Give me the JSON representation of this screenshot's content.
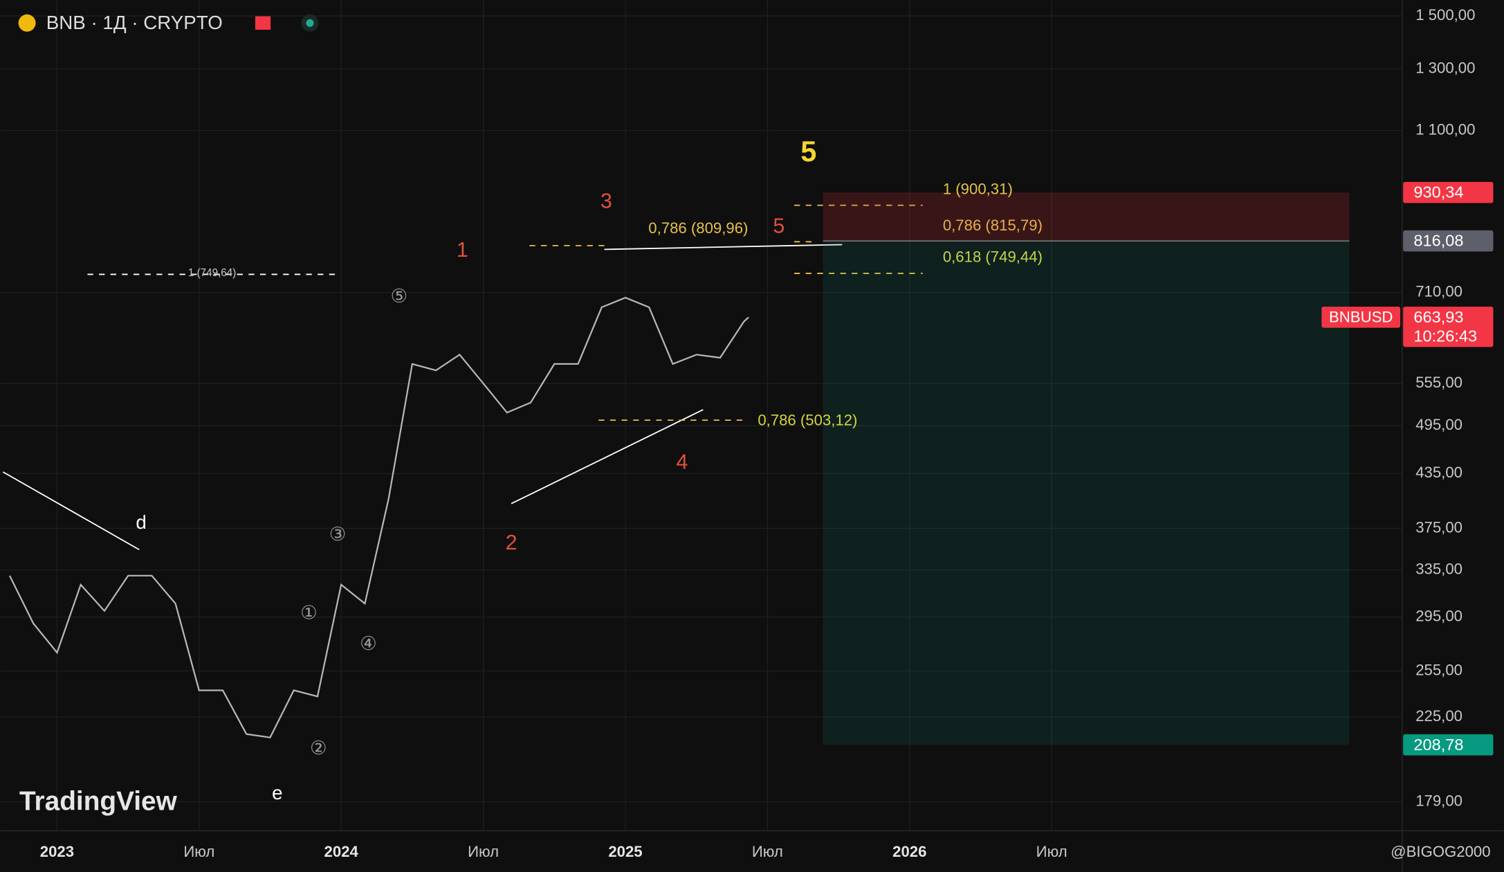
{
  "chart_data": {
    "type": "line",
    "title": "BNB · 1Д · CRYPTO",
    "x": [
      -2,
      -1,
      0,
      1,
      2,
      3,
      4,
      5,
      6,
      7,
      8,
      9,
      10,
      11,
      12,
      13,
      14,
      15,
      16,
      17,
      18,
      19,
      20,
      21,
      22,
      23,
      24,
      25,
      26,
      27,
      28,
      29,
      29.2
    ],
    "series": [
      {
        "name": "BNBUSD",
        "color": "#b8b8b8",
        "values": [
          330,
          290,
          268,
          322,
          300,
          330,
          330,
          306,
          242,
          242,
          215,
          213,
          242,
          238,
          322,
          306,
          406,
          585,
          575,
          600,
          555,
          513,
          527,
          585,
          585,
          682,
          700,
          682,
          585,
          600,
          595,
          656,
          663.93
        ]
      }
    ],
    "xlim": [
      -2.4,
      56.8
    ],
    "xticks": [
      {
        "value": 0,
        "label": "2023"
      },
      {
        "value": 6,
        "label": "Июл"
      },
      {
        "value": 12,
        "label": "2024"
      },
      {
        "value": 18,
        "label": "Июл"
      },
      {
        "value": 24,
        "label": "2025"
      },
      {
        "value": 30,
        "label": "Июл"
      },
      {
        "value": 36,
        "label": "2026"
      },
      {
        "value": 42,
        "label": "Июл"
      }
    ],
    "ylim": [
      165.5,
      1566
    ],
    "log_scale": true,
    "grid": true,
    "yticks": [
      {
        "value": 1500,
        "label": "1 500,00"
      },
      {
        "value": 1300,
        "label": "1 300,00"
      },
      {
        "value": 1100,
        "label": "1 100,00"
      },
      {
        "value": 710,
        "label": "710,00"
      },
      {
        "value": 555,
        "label": "555,00"
      },
      {
        "value": 495,
        "label": "495,00"
      },
      {
        "value": 435,
        "label": "435,00"
      },
      {
        "value": 375,
        "label": "375,00"
      },
      {
        "value": 335,
        "label": "335,00"
      },
      {
        "value": 295,
        "label": "295,00"
      },
      {
        "value": 255,
        "label": "255,00"
      },
      {
        "value": 225,
        "label": "225,00"
      },
      {
        "value": 179,
        "label": "179,00"
      }
    ],
    "price_tags": [
      {
        "value": 930.34,
        "label": "930,34",
        "color": "#f23645"
      },
      {
        "value": 816.08,
        "label": "816,08",
        "color": "#5d606b"
      },
      {
        "value": 663.93,
        "label": "663,93",
        "color": "#f23645"
      },
      {
        "value": 208.78,
        "label": "208,78",
        "color": "#089981"
      }
    ],
    "countdown": "10:26:43",
    "annotations": [
      {
        "text": "5",
        "color": "#f7d531"
      },
      {
        "text": "3",
        "color": "#e0513a"
      },
      {
        "text": "1",
        "color": "#e0513a"
      },
      {
        "text": "2",
        "color": "#e0513a"
      },
      {
        "text": "4",
        "color": "#e0513a"
      },
      {
        "text": "5",
        "color": "#e0513a"
      },
      {
        "text": "d",
        "color": "#ffffff"
      },
      {
        "text": "e",
        "color": "#ffffff"
      },
      {
        "text": "⑤",
        "color": "#9a9a9a"
      },
      {
        "text": "③",
        "color": "#9a9a9a"
      },
      {
        "text": "①",
        "color": "#9a9a9a"
      },
      {
        "text": "④",
        "color": "#9a9a9a"
      },
      {
        "text": "②",
        "color": "#9a9a9a"
      },
      {
        "text": "1 (900,31)",
        "color": "#e8c14a"
      },
      {
        "text": "0,786 (815,79)",
        "color": "#e8b04a"
      },
      {
        "text": "0,618 (749,44)",
        "color": "#c8d24a"
      },
      {
        "text": "0,786 (809,96)",
        "color": "#e8c14a"
      },
      {
        "text": "0,786 (503,12)",
        "color": "#d4d440"
      },
      {
        "text": "1 (749,64)",
        "color": "#cccccc"
      }
    ],
    "watermark": "TradingView",
    "author": "@BIGOG2000"
  }
}
